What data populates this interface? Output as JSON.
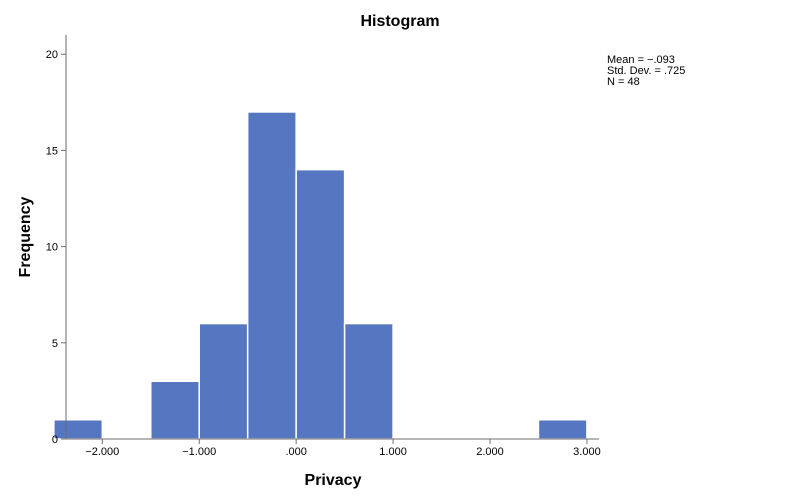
{
  "chart_data": {
    "type": "bar",
    "title": "Histogram",
    "xlabel": "Privacy",
    "ylabel": "Frequency",
    "xlim": [
      -2.55,
      3.3
    ],
    "ylim": [
      0,
      21
    ],
    "bin_width": 0.5,
    "bins": [
      {
        "x0": -2.5,
        "x1": -2.0,
        "count": 1
      },
      {
        "x0": -1.5,
        "x1": -1.0,
        "count": 3
      },
      {
        "x0": -1.0,
        "x1": -0.5,
        "count": 6
      },
      {
        "x0": -0.5,
        "x1": 0.0,
        "count": 17
      },
      {
        "x0": 0.0,
        "x1": 0.5,
        "count": 14
      },
      {
        "x0": 0.5,
        "x1": 1.0,
        "count": 6
      },
      {
        "x0": 2.5,
        "x1": 3.0,
        "count": 1
      }
    ],
    "x_ticks": [
      {
        "value": -2.0,
        "label": "−2.000"
      },
      {
        "value": -1.0,
        "label": "−1.000"
      },
      {
        "value": 0.0,
        "label": ".000"
      },
      {
        "value": 1.0,
        "label": "1.000"
      },
      {
        "value": 2.0,
        "label": "2.000"
      },
      {
        "value": 3.0,
        "label": "3.000"
      }
    ],
    "y_ticks": [
      {
        "value": 0,
        "label": "0"
      },
      {
        "value": 5,
        "label": "5"
      },
      {
        "value": 10,
        "label": "10"
      },
      {
        "value": 15,
        "label": "15"
      },
      {
        "value": 20,
        "label": "20"
      }
    ],
    "stats": {
      "mean": "Mean = −.093",
      "std_dev": "Std. Dev. = .725",
      "n": "N = 48"
    },
    "bar_color": "#5576c0",
    "grid": false
  }
}
